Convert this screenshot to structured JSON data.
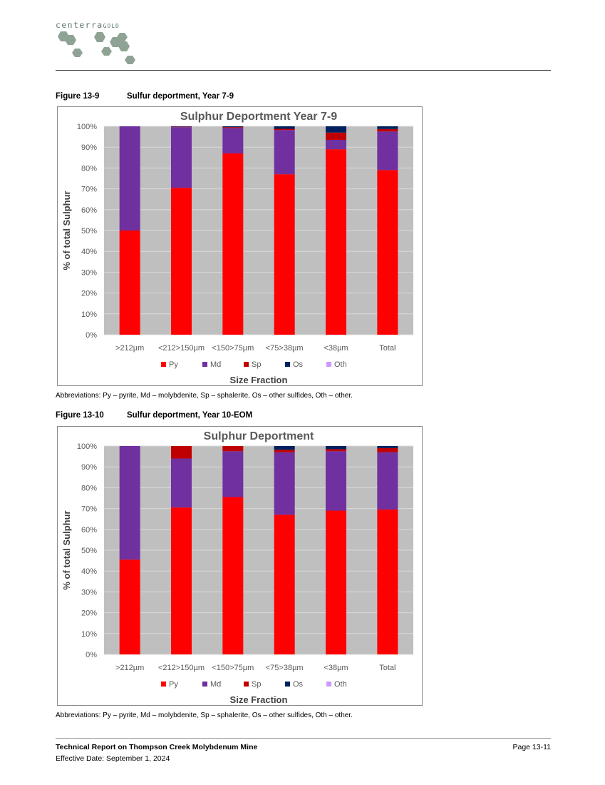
{
  "header": {
    "logo_text": "centerra",
    "logo_text_suffix": "GOLD"
  },
  "figures": [
    {
      "number": "Figure 13-9",
      "caption": "Sulfur deportment, Year 7-9",
      "abbreviations": "Abbreviations: Py – pyrite, Md – molybdenite, Sp – sphalerite, Os – other sulfides, Oth – other."
    },
    {
      "number": "Figure 13-10",
      "caption": "Sulfur deportment, Year 10-EOM",
      "abbreviations": "Abbreviations: Py – pyrite, Md – molybdenite, Sp – sphalerite, Os – other sulfides, Oth – other."
    }
  ],
  "chart_data": [
    {
      "type": "bar",
      "stacked": true,
      "title": "Sulphur Deportment Year 7-9",
      "xlabel": "Size Fraction",
      "ylabel": "% of total Sulphur",
      "ylim": [
        0,
        100
      ],
      "yticks": [
        "0%",
        "10%",
        "20%",
        "30%",
        "40%",
        "50%",
        "60%",
        "70%",
        "80%",
        "90%",
        "100%"
      ],
      "categories": [
        ">212µm",
        "<212>150µm",
        "<150>75µm",
        "<75>38µm",
        "<38µm",
        "Total"
      ],
      "grid": true,
      "legend": "bottom",
      "series": [
        {
          "name": "Py",
          "color": "#ff0000",
          "values": [
            50,
            70.5,
            87,
            77,
            89,
            79
          ]
        },
        {
          "name": "Md",
          "color": "#7030a0",
          "values": [
            50,
            29.1,
            12.2,
            21.2,
            4.5,
            18.5
          ]
        },
        {
          "name": "Sp",
          "color": "#c00000",
          "values": [
            0,
            0.2,
            0.4,
            0.6,
            3.5,
            1.2
          ]
        },
        {
          "name": "Os",
          "color": "#002060",
          "values": [
            0,
            0.2,
            0.4,
            1.2,
            3,
            1.3
          ]
        },
        {
          "name": "Oth",
          "color": "#cc99ff",
          "values": [
            0,
            0,
            0,
            0,
            0,
            0
          ]
        }
      ]
    },
    {
      "type": "bar",
      "stacked": true,
      "title": "Sulphur Deportment",
      "xlabel": "Size Fraction",
      "ylabel": "% of total Sulphur",
      "ylim": [
        0,
        100
      ],
      "yticks": [
        "0%",
        "10%",
        "20%",
        "30%",
        "40%",
        "50%",
        "60%",
        "70%",
        "80%",
        "90%",
        "100%"
      ],
      "categories": [
        ">212µm",
        "<212>150µm",
        "<150>75µm",
        "<75>38µm",
        "<38µm",
        "Total"
      ],
      "grid": true,
      "legend": "bottom",
      "series": [
        {
          "name": "Py",
          "color": "#ff0000",
          "values": [
            45.5,
            70.5,
            75.5,
            67,
            69,
            69.5
          ]
        },
        {
          "name": "Md",
          "color": "#7030a0",
          "values": [
            54.5,
            23.5,
            22,
            30,
            28.5,
            27.5
          ]
        },
        {
          "name": "Sp",
          "color": "#c00000",
          "values": [
            0,
            6,
            2.5,
            1.2,
            1,
            2
          ]
        },
        {
          "name": "Os",
          "color": "#002060",
          "values": [
            0,
            0,
            0,
            1.8,
            1.5,
            1
          ]
        },
        {
          "name": "Oth",
          "color": "#cc99ff",
          "values": [
            0,
            0,
            0,
            0,
            0,
            0
          ]
        }
      ]
    }
  ],
  "footer": {
    "title": "Technical Report on Thompson Creek Molybdenum Mine",
    "date": "Effective Date: September 1, 2024",
    "page": "Page 13-11"
  }
}
